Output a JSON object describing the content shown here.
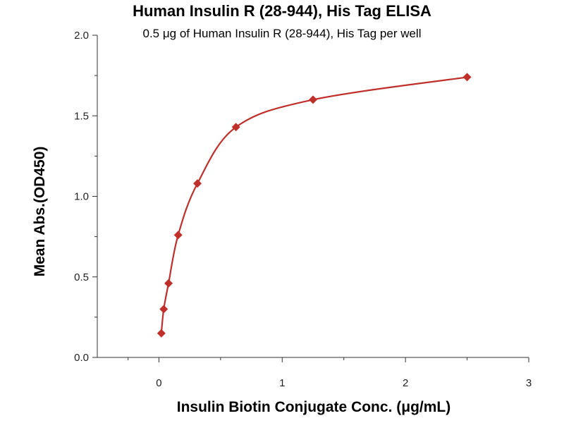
{
  "chart_data": {
    "type": "scatter",
    "title": "Human Insulin R (28-944), His Tag ELISA",
    "subtitle": "0.5 μg of Human Insulin R (28-944), His Tag per well",
    "xlabel": "Insulin Biotin Conjugate Conc. (μg/mL)",
    "ylabel": "Mean Abs.(OD450)",
    "xlim": [
      -0.5,
      3
    ],
    "ylim": [
      0,
      2
    ],
    "x_ticks": [
      0,
      1,
      2,
      3
    ],
    "y_ticks": [
      0.0,
      0.5,
      1.0,
      1.5,
      2.0
    ],
    "x_tick_labels": [
      "0",
      "1",
      "2",
      "3"
    ],
    "y_tick_labels": [
      "0.0",
      "0.5",
      "1.0",
      "1.5",
      "2.0"
    ],
    "grid": false,
    "marker_color": "#c0302b",
    "curve_color": "#c0302b",
    "series": [
      {
        "x": [
          0.0195,
          0.039,
          0.078,
          0.156,
          0.3125,
          0.625,
          1.25,
          2.5
        ],
        "y": [
          0.15,
          0.3,
          0.46,
          0.76,
          1.08,
          1.43,
          1.6,
          1.74
        ]
      }
    ]
  }
}
